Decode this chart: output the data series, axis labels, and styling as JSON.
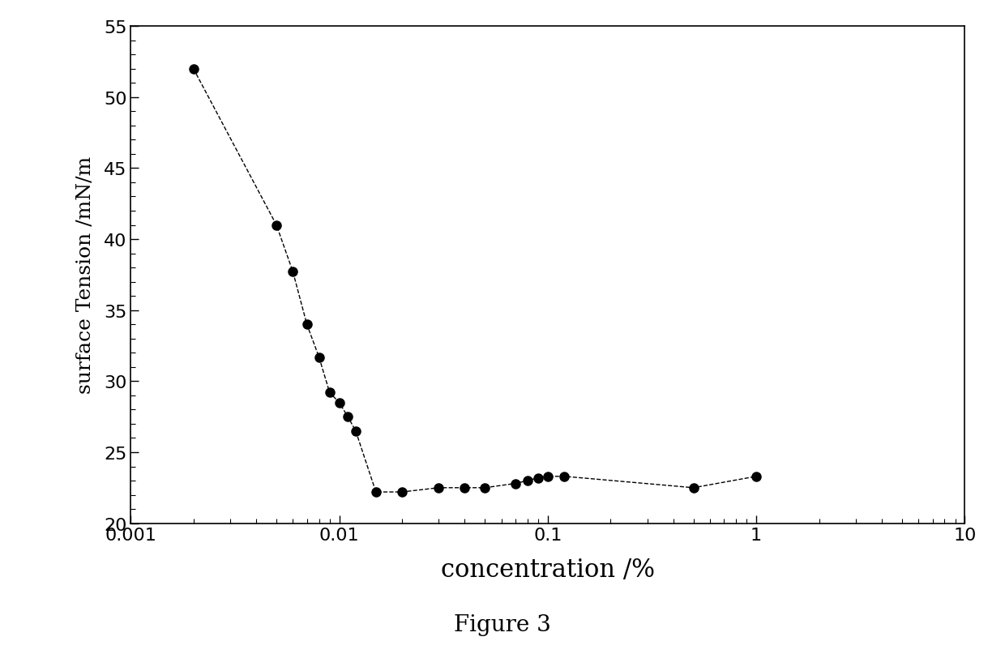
{
  "x": [
    0.002,
    0.005,
    0.006,
    0.007,
    0.008,
    0.009,
    0.01,
    0.011,
    0.012,
    0.015,
    0.02,
    0.03,
    0.04,
    0.05,
    0.07,
    0.08,
    0.09,
    0.1,
    0.12,
    0.5,
    1.0
  ],
  "y": [
    52.0,
    41.0,
    37.7,
    34.0,
    31.7,
    29.2,
    28.5,
    27.5,
    26.5,
    22.2,
    22.2,
    22.5,
    22.5,
    22.5,
    22.8,
    23.0,
    23.2,
    23.3,
    23.3,
    22.5,
    23.3
  ],
  "xlabel": "concentration /%",
  "ylabel": "surface Tension /mN/m",
  "title": "Figure 3",
  "xlim": [
    0.001,
    10
  ],
  "ylim": [
    20,
    55
  ],
  "yticks": [
    20,
    25,
    30,
    35,
    40,
    45,
    50,
    55
  ],
  "bg_color": "#ffffff",
  "line_color": "#000000",
  "marker_color": "#000000",
  "marker_size": 8,
  "line_style": "--",
  "line_width": 1.0,
  "tick_labelsize": 16,
  "xlabel_fontsize": 22,
  "ylabel_fontsize": 18,
  "title_fontsize": 20
}
